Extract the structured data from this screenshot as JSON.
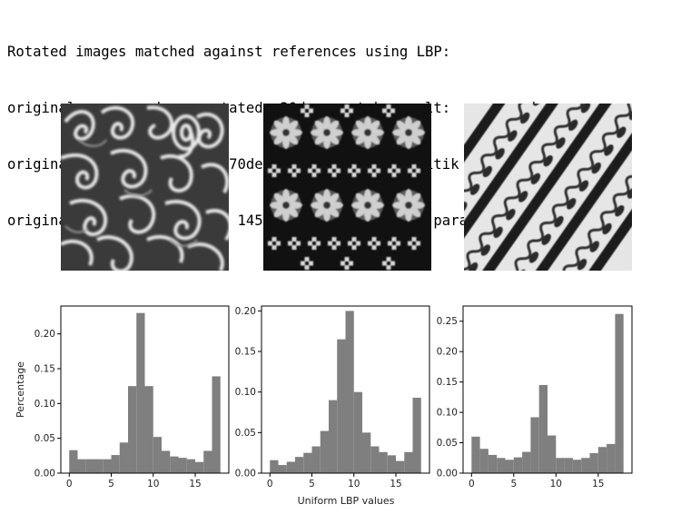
{
  "output": {
    "lines": [
      "Rotated images matched against references using LBP:",
      "original: megamendung, rotated: 30deg, match result:  megamendung",
      "original: nitik, rotated: 70deg, match result:  nitik",
      "original: parang, rotated: 145deg, match result:  parang"
    ]
  },
  "images": [
    {
      "name": "megamendung",
      "kind": "cloud-pattern"
    },
    {
      "name": "nitik",
      "kind": "dotted-flower-pattern"
    },
    {
      "name": "parang",
      "kind": "diagonal-stripe-pattern"
    }
  ],
  "colors": {
    "bar": "#7f7f7f",
    "axis": "#000000"
  },
  "chart_data": [
    {
      "type": "bar",
      "title": "",
      "xlabel": "",
      "ylabel": "Percentage",
      "xlim": [
        -1,
        19
      ],
      "ylim": [
        0,
        0.24
      ],
      "xticks": [
        0,
        5,
        10,
        15
      ],
      "yticks": [
        0.0,
        0.05,
        0.1,
        0.15,
        0.2
      ],
      "ytick_labels": [
        "0.00",
        "0.05",
        "0.10",
        "0.15",
        "0.20"
      ],
      "bins": 18,
      "bin_range": [
        0,
        18
      ],
      "values": [
        0.033,
        0.02,
        0.02,
        0.02,
        0.02,
        0.026,
        0.044,
        0.125,
        0.23,
        0.125,
        0.052,
        0.032,
        0.024,
        0.022,
        0.02,
        0.016,
        0.032,
        0.139
      ]
    },
    {
      "type": "bar",
      "title": "",
      "xlabel": "Uniform LBP values",
      "ylabel": "",
      "xlim": [
        -1,
        19
      ],
      "ylim": [
        0,
        0.206
      ],
      "xticks": [
        0,
        5,
        10,
        15
      ],
      "yticks": [
        0.0,
        0.05,
        0.1,
        0.15,
        0.2
      ],
      "ytick_labels": [
        "0.00",
        "0.05",
        "0.10",
        "0.15",
        "0.20"
      ],
      "bins": 18,
      "bin_range": [
        0,
        18
      ],
      "values": [
        0.016,
        0.01,
        0.014,
        0.02,
        0.025,
        0.033,
        0.052,
        0.09,
        0.165,
        0.2,
        0.1,
        0.05,
        0.033,
        0.026,
        0.022,
        0.015,
        0.026,
        0.093
      ]
    },
    {
      "type": "bar",
      "title": "",
      "xlabel": "",
      "ylabel": "",
      "xlim": [
        -1,
        19
      ],
      "ylim": [
        0,
        0.275
      ],
      "xticks": [
        0,
        5,
        10,
        15
      ],
      "yticks": [
        0.0,
        0.05,
        0.1,
        0.15,
        0.2,
        0.25
      ],
      "ytick_labels": [
        "0.00",
        "0.05",
        "0.10",
        "0.15",
        "0.20",
        "0.25"
      ],
      "bins": 18,
      "bin_range": [
        0,
        18
      ],
      "values": [
        0.06,
        0.04,
        0.03,
        0.025,
        0.022,
        0.026,
        0.035,
        0.092,
        0.145,
        0.062,
        0.025,
        0.025,
        0.022,
        0.025,
        0.033,
        0.043,
        0.048,
        0.262
      ]
    }
  ]
}
